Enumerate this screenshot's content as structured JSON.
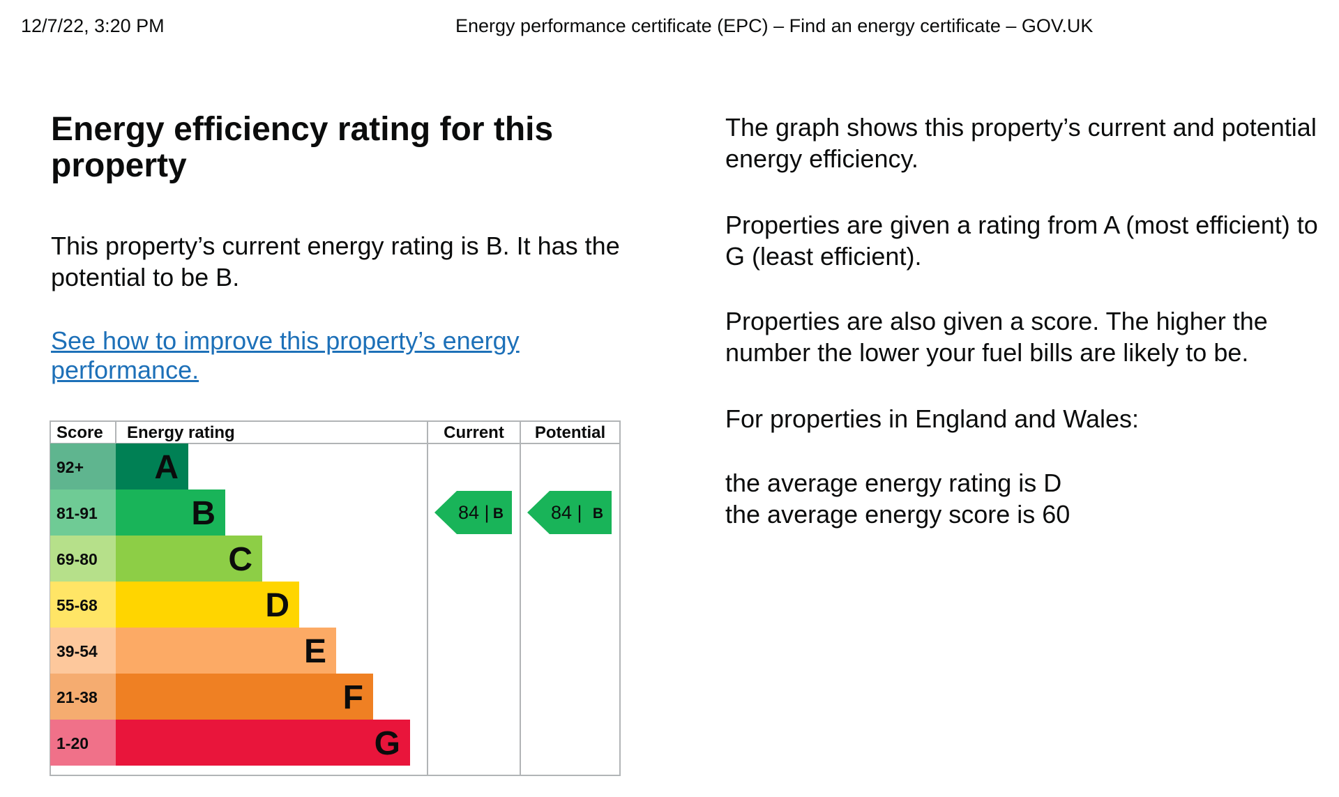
{
  "print_header": {
    "date": "12/7/22, 3:20 PM",
    "title": "Energy performance certificate (EPC) – Find an energy certificate – GOV.UK"
  },
  "left": {
    "heading": "Energy efficiency rating for this property",
    "summary": "This property’s current energy rating is B. It has the potential to be B.",
    "improve_link": "See how to improve this property’s energy performance."
  },
  "right": {
    "p1": "The graph shows this property’s current and potential energy efficiency.",
    "p2": "Properties are given a rating from A (most efficient) to G (least efficient).",
    "p3": "Properties are also given a score. The higher the number the lower your fuel bills are likely to be.",
    "p4": "For properties in England and Wales:",
    "avg_rating": "the average energy rating is D",
    "avg_score": "the average energy score is 60"
  },
  "chart_data": {
    "type": "table",
    "headers": {
      "score": "Score",
      "rating": "Energy rating",
      "current": "Current",
      "potential": "Potential"
    },
    "bands": [
      {
        "score": "92+",
        "letter": "A",
        "color": "#008054",
        "score_bg": "#5fb58f"
      },
      {
        "score": "81-91",
        "letter": "B",
        "color": "#19b459",
        "score_bg": "#6fcb95"
      },
      {
        "score": "69-80",
        "letter": "C",
        "color": "#8dce46",
        "score_bg": "#b6e08a"
      },
      {
        "score": "55-68",
        "letter": "D",
        "color": "#ffd500",
        "score_bg": "#ffe566"
      },
      {
        "score": "39-54",
        "letter": "E",
        "color": "#fcaa65",
        "score_bg": "#fdc89c"
      },
      {
        "score": "21-38",
        "letter": "F",
        "color": "#ef8023",
        "score_bg": "#f5ac70"
      },
      {
        "score": "1-20",
        "letter": "G",
        "color": "#e9153b",
        "score_bg": "#f07189"
      }
    ],
    "current": {
      "score": 84,
      "letter": "B",
      "label": "84 | B"
    },
    "potential": {
      "score": 84,
      "letter": "B",
      "label": "84 | B"
    }
  }
}
